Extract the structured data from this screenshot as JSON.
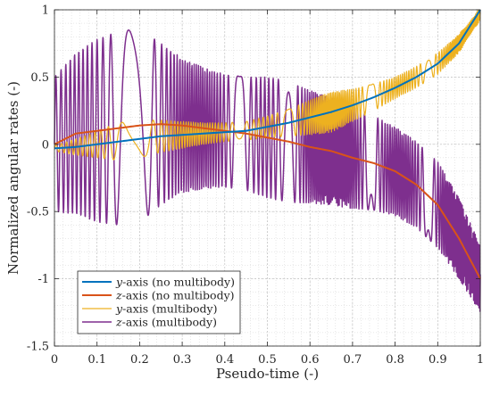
{
  "chart_data": {
    "type": "line",
    "xlabel": "Pseudo-time (-)",
    "ylabel": "Normalized angular rates (-)",
    "xlim": [
      0,
      1
    ],
    "ylim": [
      -1.5,
      1
    ],
    "xticks": [
      0,
      0.1,
      0.2,
      0.3,
      0.4,
      0.5,
      0.6,
      0.7,
      0.8,
      0.9,
      1
    ],
    "xtick_labels": [
      "0",
      "0.1",
      "0.2",
      "0.3",
      "0.4",
      "0.5",
      "0.6",
      "0.7",
      "0.8",
      "0.9",
      "1"
    ],
    "yticks": [
      -1.5,
      -1,
      -0.5,
      0,
      0.5,
      1
    ],
    "ytick_labels": [
      "-1.5",
      "-1",
      "-0.5",
      "0",
      "0.5",
      "1"
    ],
    "grid": true,
    "minor_grid": true,
    "legend_position": "bottom-left",
    "series": [
      {
        "name": "y-axis (no multibody)",
        "axis_letter": "y",
        "legend_rest": "-axis (no multibody)",
        "color": "#0072BD",
        "x": [
          0,
          0.05,
          0.1,
          0.15,
          0.2,
          0.25,
          0.3,
          0.35,
          0.4,
          0.45,
          0.5,
          0.55,
          0.6,
          0.65,
          0.7,
          0.75,
          0.8,
          0.85,
          0.9,
          0.95,
          1.0
        ],
        "y": [
          -0.03,
          -0.02,
          0.0,
          0.02,
          0.04,
          0.06,
          0.07,
          0.08,
          0.09,
          0.1,
          0.13,
          0.16,
          0.2,
          0.24,
          0.29,
          0.35,
          0.42,
          0.5,
          0.6,
          0.75,
          1.0
        ]
      },
      {
        "name": "z-axis (no multibody)",
        "axis_letter": "z",
        "legend_rest": "-axis (no multibody)",
        "color": "#D95319",
        "x": [
          0,
          0.05,
          0.1,
          0.15,
          0.2,
          0.25,
          0.3,
          0.35,
          0.4,
          0.45,
          0.5,
          0.55,
          0.6,
          0.65,
          0.7,
          0.75,
          0.8,
          0.85,
          0.9,
          0.95,
          1.0
        ],
        "y": [
          0.0,
          0.08,
          0.1,
          0.12,
          0.14,
          0.15,
          0.14,
          0.12,
          0.1,
          0.08,
          0.05,
          0.02,
          -0.02,
          -0.05,
          -0.1,
          -0.14,
          -0.2,
          -0.3,
          -0.45,
          -0.7,
          -1.0
        ]
      },
      {
        "name": "y-axis (multibody)",
        "axis_letter": "y",
        "legend_rest": "-axis (multibody)",
        "color": "#EDB120",
        "x": [
          0,
          0.05,
          0.1,
          0.15,
          0.2,
          0.25,
          0.3,
          0.35,
          0.4,
          0.45,
          0.5,
          0.55,
          0.6,
          0.65,
          0.7,
          0.75,
          0.8,
          0.85,
          0.9,
          0.95,
          1.0
        ],
        "y": [
          -0.03,
          -0.02,
          0.0,
          0.02,
          0.04,
          0.06,
          0.07,
          0.08,
          0.09,
          0.1,
          0.13,
          0.16,
          0.2,
          0.24,
          0.29,
          0.35,
          0.42,
          0.5,
          0.6,
          0.75,
          0.97
        ],
        "oscillation_amplitude": [
          0.02,
          0.06,
          0.1,
          0.14,
          0.14,
          0.12,
          0.1,
          0.08,
          0.07,
          0.07,
          0.08,
          0.1,
          0.13,
          0.15,
          0.12,
          0.1,
          0.08,
          0.08,
          0.08,
          0.07,
          0.05
        ],
        "oscillation_cycles": 70
      },
      {
        "name": "z-axis (multibody)",
        "axis_letter": "z",
        "legend_rest": "-axis (multibody)",
        "color": "#7E2F8E",
        "x": [
          0,
          0.05,
          0.1,
          0.15,
          0.2,
          0.25,
          0.3,
          0.35,
          0.4,
          0.45,
          0.5,
          0.55,
          0.6,
          0.65,
          0.7,
          0.75,
          0.8,
          0.85,
          0.9,
          0.95,
          1.0
        ],
        "y": [
          0.0,
          0.08,
          0.1,
          0.12,
          0.14,
          0.15,
          0.14,
          0.12,
          0.1,
          0.08,
          0.05,
          0.02,
          -0.02,
          -0.05,
          -0.1,
          -0.14,
          -0.2,
          -0.3,
          -0.45,
          -0.7,
          -1.0
        ],
        "oscillation_amplitude": [
          0.5,
          0.6,
          0.68,
          0.72,
          0.72,
          0.6,
          0.5,
          0.45,
          0.42,
          0.42,
          0.45,
          0.45,
          0.42,
          0.4,
          0.38,
          0.35,
          0.33,
          0.32,
          0.32,
          0.3,
          0.25
        ],
        "oscillation_cycles": 75
      }
    ]
  }
}
